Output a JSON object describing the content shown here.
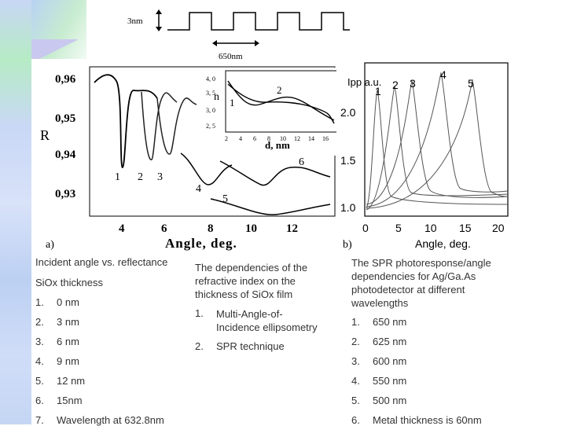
{
  "header": {
    "height_label": "3nm",
    "period_label": "650nm"
  },
  "panel_a": {
    "panel_label": "a)",
    "ylabel": "R",
    "xlabel": "Angle, deg.",
    "x_ticks": [
      "4",
      "6",
      "8",
      "10",
      "12"
    ],
    "y_ticks": [
      "0,96",
      "0,95",
      "0,94",
      "0,93"
    ],
    "curve_labels": [
      "1",
      "2",
      "3",
      "4",
      "5",
      "6"
    ]
  },
  "inset": {
    "ylabel": "n",
    "xlabel": "d, nm",
    "y_ticks": [
      "4, 0",
      "3, 5",
      "3, 0",
      "2, 5"
    ],
    "x_ticks": [
      "2",
      "4",
      "6",
      "8",
      "10",
      "12",
      "14",
      "16"
    ],
    "curve_labels": [
      "1",
      "2"
    ]
  },
  "panel_b": {
    "panel_label": "b)",
    "ylabel": "Ipp a.u.",
    "xlabel": "Angle, deg.",
    "x_ticks": [
      "0",
      "5",
      "10",
      "15",
      "20"
    ],
    "y_ticks": [
      "2.0",
      "1.5",
      "1.0"
    ],
    "peak_labels": [
      "1",
      "2",
      "3",
      "4",
      "5"
    ]
  },
  "caption_left": {
    "title": "Incident angle vs. reflectance",
    "subtitle": "SiOx  thickness",
    "items": [
      {
        "num": "1.",
        "text": "0 nm"
      },
      {
        "num": "2.",
        "text": "3 nm"
      },
      {
        "num": "3.",
        "text": "6 nm"
      },
      {
        "num": "4.",
        "text": "9 nm"
      },
      {
        "num": "5.",
        "text": "12 nm"
      },
      {
        "num": "6.",
        "text": "15nm"
      },
      {
        "num": "7.",
        "text": "Wavelength at 632.8nm"
      }
    ]
  },
  "caption_middle": {
    "title": "The dependencies of the refractive index on the thickness of SiOx film",
    "items": [
      {
        "num": "1.",
        "text": "Multi-Angle-of-Incidence ellipsometry"
      },
      {
        "num": "2.",
        "text": "SPR technique"
      }
    ]
  },
  "caption_right": {
    "title": "The SPR photoresponse/angle dependencies for Ag/Ga.As photodetector at different wavelengths",
    "items": [
      {
        "num": "1.",
        "text": "650 nm"
      },
      {
        "num": "2.",
        "text": "625 nm"
      },
      {
        "num": "3.",
        "text": "600 nm"
      },
      {
        "num": "4.",
        "text": "550 nm"
      },
      {
        "num": "5.",
        "text": "500 nm"
      },
      {
        "num": "6.",
        "text": "Metal thickness is 60nm"
      }
    ]
  },
  "chart_data": [
    {
      "type": "line",
      "title": "",
      "xlabel": "Angle, deg.",
      "ylabel": "R",
      "xlim": [
        2.5,
        13.5
      ],
      "ylim": [
        0.925,
        0.965
      ],
      "series": [
        {
          "name": "1",
          "x": [
            3.0,
            3.5,
            4.0,
            4.3,
            4.5,
            4.7,
            5.0,
            5.5
          ],
          "y": [
            0.957,
            0.958,
            0.955,
            0.94,
            0.934,
            0.945,
            0.953,
            0.955
          ]
        },
        {
          "name": "2",
          "x": [
            5.0,
            5.3,
            5.5,
            5.7,
            6.0,
            6.3
          ],
          "y": [
            0.952,
            0.948,
            0.935,
            0.94,
            0.948,
            0.952
          ]
        },
        {
          "name": "3",
          "x": [
            6.3,
            6.6,
            6.8,
            7.0,
            7.3,
            7.8
          ],
          "y": [
            0.952,
            0.945,
            0.937,
            0.944,
            0.95,
            0.952
          ]
        },
        {
          "name": "4",
          "x": [
            6.8,
            7.5,
            8.2,
            9.0,
            9.5
          ],
          "y": [
            0.939,
            0.935,
            0.93,
            0.933,
            0.937
          ]
        },
        {
          "name": "5",
          "x": [
            8.8,
            9.5,
            10.5,
            11.5,
            12.5,
            13.5
          ],
          "y": [
            0.927,
            0.926,
            0.925,
            0.924,
            0.926,
            0.928
          ]
        },
        {
          "name": "6",
          "x": [
            7.5,
            8.5,
            9.5,
            10.0,
            10.5,
            11.5,
            12.5,
            13.0
          ],
          "y": [
            0.938,
            0.935,
            0.933,
            0.931,
            0.933,
            0.936,
            0.937,
            0.938
          ]
        }
      ]
    },
    {
      "type": "line",
      "title": "",
      "xlabel": "d, nm",
      "ylabel": "n",
      "xlim": [
        2,
        16
      ],
      "ylim": [
        2.5,
        4.0
      ],
      "series": [
        {
          "name": "1",
          "x": [
            2,
            4,
            6,
            8,
            10,
            12,
            14,
            16
          ],
          "y": [
            3.7,
            3.3,
            3.05,
            3.1,
            3.2,
            3.15,
            3.0,
            2.8
          ]
        },
        {
          "name": "2",
          "x": [
            2,
            4,
            6,
            8,
            10,
            12,
            14,
            16
          ],
          "y": [
            3.65,
            3.4,
            3.25,
            3.2,
            3.15,
            3.05,
            2.95,
            2.85
          ]
        }
      ]
    },
    {
      "type": "line",
      "title": "",
      "xlabel": "Angle, deg.",
      "ylabel": "Ipp a.u.",
      "xlim": [
        0,
        21
      ],
      "ylim": [
        0.9,
        2.8
      ],
      "series": [
        {
          "name": "1",
          "peak_x": 2,
          "peak_y": 2.5
        },
        {
          "name": "2",
          "peak_x": 4.5,
          "peak_y": 2.55
        },
        {
          "name": "3",
          "peak_x": 7,
          "peak_y": 2.6
        },
        {
          "name": "4",
          "peak_x": 11,
          "peak_y": 2.7
        },
        {
          "name": "5",
          "peak_x": 16.5,
          "peak_y": 2.55
        }
      ]
    }
  ]
}
